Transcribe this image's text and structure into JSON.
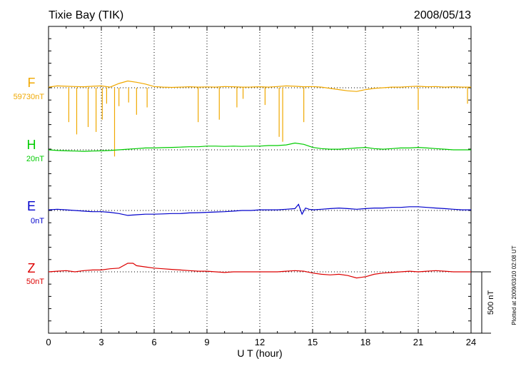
{
  "header": {
    "station": "Tixie Bay (TIK)",
    "date": "2008/05/13"
  },
  "chart_data": {
    "type": "line",
    "xlabel": "U T (hour)",
    "xlim": [
      0,
      24
    ],
    "x_ticks": [
      "0",
      "3",
      "6",
      "9",
      "12",
      "15",
      "18",
      "21",
      "24"
    ],
    "y_scale_bar_label": "500 nT",
    "y_scale_bar_nT": 500,
    "plot_note": "Plotted at 2009/03/10 02:08 UT",
    "grid": true,
    "series": [
      {
        "name": "F",
        "baseline_label": "59730nT",
        "color": "#f0a800",
        "x": [
          0,
          0.5,
          1,
          1.5,
          2,
          2.5,
          3,
          3.5,
          4,
          4.5,
          5,
          5.5,
          6,
          6.5,
          7,
          7.5,
          8,
          8.5,
          9,
          9.5,
          10,
          10.5,
          11,
          11.5,
          12,
          12.5,
          13,
          13.5,
          14,
          14.5,
          15,
          15.5,
          16,
          16.5,
          17,
          17.5,
          18,
          18.5,
          19,
          19.5,
          20,
          20.5,
          21,
          21.5,
          22,
          22.5,
          23,
          23.5,
          24
        ],
        "y": [
          5,
          15,
          12,
          10,
          8,
          12,
          15,
          5,
          35,
          55,
          45,
          30,
          10,
          5,
          3,
          5,
          8,
          5,
          7,
          5,
          10,
          8,
          5,
          6,
          8,
          5,
          10,
          15,
          12,
          8,
          10,
          5,
          -5,
          -15,
          -25,
          -30,
          -15,
          -5,
          0,
          5,
          5,
          10,
          12,
          8,
          10,
          5,
          8,
          5,
          5
        ],
        "spikes": [
          {
            "x": 1.15,
            "y": -280
          },
          {
            "x": 1.6,
            "y": -380
          },
          {
            "x": 2.25,
            "y": -320
          },
          {
            "x": 2.7,
            "y": -360
          },
          {
            "x": 3.05,
            "y": -260
          },
          {
            "x": 3.3,
            "y": -130
          },
          {
            "x": 3.75,
            "y": -560
          },
          {
            "x": 4.0,
            "y": -150
          },
          {
            "x": 4.55,
            "y": -120
          },
          {
            "x": 5.0,
            "y": -220
          },
          {
            "x": 5.6,
            "y": -160
          },
          {
            "x": 8.5,
            "y": -280
          },
          {
            "x": 9.7,
            "y": -260
          },
          {
            "x": 10.7,
            "y": -160
          },
          {
            "x": 11.05,
            "y": -90
          },
          {
            "x": 12.3,
            "y": -140
          },
          {
            "x": 13.1,
            "y": -400
          },
          {
            "x": 13.3,
            "y": -440
          },
          {
            "x": 14.5,
            "y": -280
          },
          {
            "x": 21.0,
            "y": -180
          },
          {
            "x": 23.8,
            "y": -130
          }
        ]
      },
      {
        "name": "H",
        "baseline_label": "20nT",
        "color": "#00cc00",
        "x": [
          0,
          0.5,
          1,
          1.5,
          2,
          2.5,
          3,
          3.5,
          4,
          4.5,
          5,
          5.5,
          6,
          6.5,
          7,
          7.5,
          8,
          8.5,
          9,
          9.5,
          10,
          10.5,
          11,
          11.5,
          12,
          12.5,
          13,
          13.5,
          14,
          14.5,
          15,
          15.5,
          16,
          16.5,
          17,
          17.5,
          18,
          18.5,
          19,
          19.5,
          20,
          20.5,
          21,
          21.5,
          22,
          22.5,
          23,
          23.5,
          24
        ],
        "y": [
          0,
          -5,
          -8,
          -10,
          -12,
          -10,
          -8,
          -5,
          0,
          5,
          10,
          15,
          15,
          18,
          20,
          22,
          25,
          25,
          30,
          30,
          28,
          30,
          28,
          30,
          30,
          35,
          35,
          40,
          55,
          45,
          20,
          10,
          5,
          5,
          10,
          15,
          20,
          10,
          5,
          10,
          15,
          15,
          20,
          15,
          10,
          5,
          0,
          0,
          0
        ]
      },
      {
        "name": "E",
        "baseline_label": "0nT",
        "color": "#0000cc",
        "x": [
          0,
          0.5,
          1,
          1.5,
          2,
          2.5,
          3,
          3.5,
          4,
          4.5,
          5,
          5.5,
          6,
          6.5,
          7,
          7.5,
          8,
          8.5,
          9,
          9.5,
          10,
          10.5,
          11,
          11.5,
          12,
          12.5,
          13,
          13.5,
          14,
          14.2,
          14.4,
          14.6,
          14.8,
          15,
          15.5,
          16,
          16.5,
          17,
          17.5,
          18,
          18.5,
          19,
          19.5,
          20,
          20.5,
          21,
          21.5,
          22,
          22.5,
          23,
          23.5,
          24
        ],
        "y": [
          5,
          10,
          5,
          0,
          -5,
          -10,
          -10,
          -15,
          -25,
          -40,
          -35,
          -30,
          -30,
          -28,
          -25,
          -25,
          -20,
          -18,
          -15,
          -12,
          -10,
          -5,
          0,
          0,
          5,
          5,
          5,
          10,
          15,
          50,
          -30,
          20,
          10,
          5,
          10,
          15,
          20,
          15,
          10,
          15,
          20,
          20,
          25,
          25,
          30,
          30,
          25,
          20,
          15,
          10,
          5,
          5
        ]
      },
      {
        "name": "Z",
        "baseline_label": "50nT",
        "color": "#dd0000",
        "x": [
          0,
          0.5,
          1,
          1.5,
          2,
          2.5,
          3,
          3.5,
          4,
          4.5,
          4.8,
          5,
          5.5,
          6,
          6.5,
          7,
          7.5,
          8,
          8.5,
          9,
          9.5,
          10,
          10.5,
          11,
          11.5,
          12,
          12.5,
          13,
          13.5,
          14,
          14.5,
          15,
          15.5,
          16,
          16.5,
          17,
          17.5,
          18,
          18.5,
          19,
          19.5,
          20,
          20.5,
          21,
          21.5,
          22,
          22.5,
          23,
          23.5,
          24
        ],
        "y": [
          0,
          5,
          10,
          0,
          10,
          15,
          15,
          25,
          30,
          70,
          70,
          50,
          40,
          30,
          25,
          20,
          15,
          10,
          5,
          5,
          0,
          -5,
          0,
          0,
          0,
          0,
          0,
          0,
          5,
          10,
          5,
          -10,
          -20,
          -25,
          -20,
          -30,
          -50,
          -40,
          -20,
          -10,
          -5,
          0,
          5,
          0,
          5,
          10,
          5,
          0,
          0,
          0
        ]
      }
    ]
  }
}
